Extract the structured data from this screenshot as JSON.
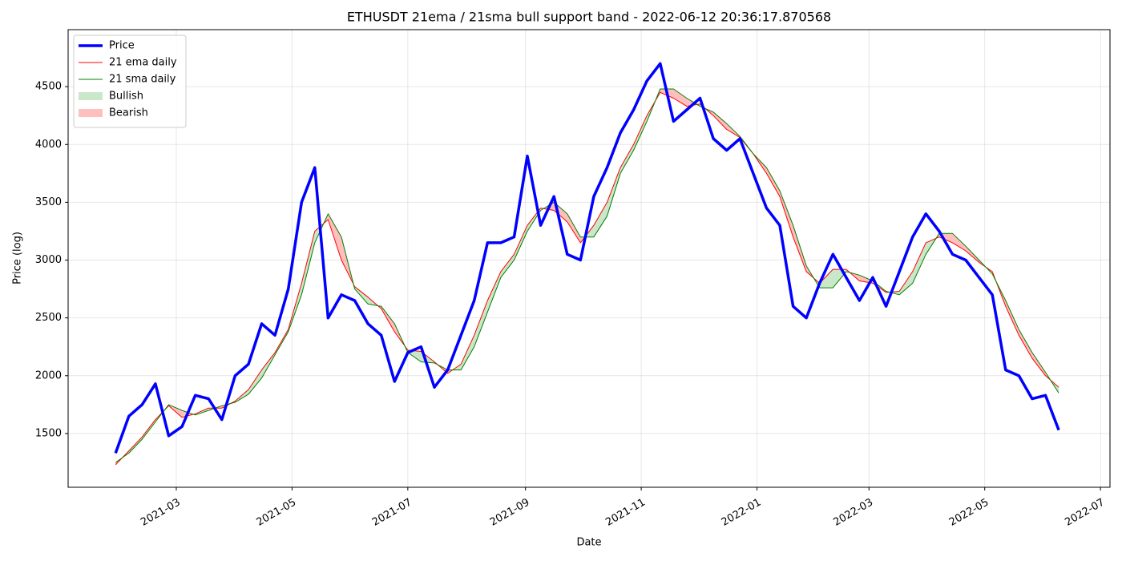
{
  "chart_data": {
    "type": "line",
    "title": "ETHUSDT 21ema / 21sma bull support band - 2022-06-12 20:36:17.870568",
    "x_label": "Date",
    "y_label": "Price (log)",
    "x": [
      "2021-01-28",
      "2021-02-04",
      "2021-02-11",
      "2021-02-18",
      "2021-02-25",
      "2021-03-04",
      "2021-03-11",
      "2021-03-18",
      "2021-03-25",
      "2021-04-01",
      "2021-04-08",
      "2021-04-15",
      "2021-04-22",
      "2021-04-29",
      "2021-05-06",
      "2021-05-13",
      "2021-05-20",
      "2021-05-27",
      "2021-06-03",
      "2021-06-10",
      "2021-06-17",
      "2021-06-24",
      "2021-07-01",
      "2021-07-08",
      "2021-07-15",
      "2021-07-22",
      "2021-07-29",
      "2021-08-05",
      "2021-08-12",
      "2021-08-19",
      "2021-08-26",
      "2021-09-02",
      "2021-09-09",
      "2021-09-16",
      "2021-09-23",
      "2021-09-30",
      "2021-10-07",
      "2021-10-14",
      "2021-10-21",
      "2021-10-28",
      "2021-11-04",
      "2021-11-11",
      "2021-11-18",
      "2021-11-25",
      "2021-12-02",
      "2021-12-09",
      "2021-12-16",
      "2021-12-23",
      "2021-12-30",
      "2022-01-06",
      "2022-01-13",
      "2022-01-20",
      "2022-01-27",
      "2022-02-03",
      "2022-02-10",
      "2022-02-17",
      "2022-02-24",
      "2022-03-03",
      "2022-03-10",
      "2022-03-17",
      "2022-03-24",
      "2022-03-31",
      "2022-04-07",
      "2022-04-14",
      "2022-04-21",
      "2022-04-28",
      "2022-05-05",
      "2022-05-12",
      "2022-05-19",
      "2022-05-26",
      "2022-06-02",
      "2022-06-09"
    ],
    "series": [
      {
        "name": "Price",
        "color": "#0000ff",
        "width": 3.5,
        "values": [
          1330,
          1650,
          1750,
          1930,
          1480,
          1560,
          1830,
          1800,
          1620,
          2000,
          2100,
          2450,
          2350,
          2750,
          3500,
          3800,
          2500,
          2700,
          2650,
          2450,
          2350,
          1950,
          2200,
          2250,
          1900,
          2050,
          2350,
          2650,
          3150,
          3150,
          3200,
          3900,
          3300,
          3550,
          3050,
          3000,
          3550,
          3800,
          4100,
          4300,
          4550,
          4700,
          4200,
          4300,
          4400,
          4050,
          3950,
          4050,
          3750,
          3450,
          3300,
          2600,
          2500,
          2800,
          3050,
          2850,
          2650,
          2850,
          2600,
          2900,
          3200,
          3400,
          3250,
          3050,
          3000,
          2850,
          2700,
          2050,
          2000,
          1800,
          1830,
          1530
        ]
      },
      {
        "name": "21 ema daily",
        "color": "#ff0000",
        "width": 1,
        "values": [
          1230,
          1350,
          1470,
          1620,
          1740,
          1640,
          1670,
          1720,
          1720,
          1780,
          1880,
          2050,
          2200,
          2400,
          2800,
          3250,
          3350,
          3000,
          2770,
          2680,
          2580,
          2380,
          2220,
          2210,
          2120,
          2020,
          2100,
          2350,
          2650,
          2900,
          3050,
          3300,
          3450,
          3430,
          3330,
          3150,
          3300,
          3500,
          3800,
          4000,
          4250,
          4450,
          4400,
          4330,
          4350,
          4250,
          4130,
          4060,
          3920,
          3750,
          3550,
          3200,
          2900,
          2800,
          2920,
          2920,
          2820,
          2800,
          2720,
          2730,
          2900,
          3150,
          3200,
          3150,
          3080,
          2980,
          2900,
          2600,
          2350,
          2150,
          2000,
          1900
        ]
      },
      {
        "name": "21 sma daily",
        "color": "#008000",
        "width": 1,
        "values": [
          1250,
          1330,
          1450,
          1600,
          1750,
          1700,
          1660,
          1700,
          1740,
          1770,
          1840,
          1980,
          2180,
          2380,
          2700,
          3150,
          3400,
          3200,
          2750,
          2620,
          2600,
          2450,
          2200,
          2120,
          2110,
          2050,
          2050,
          2250,
          2550,
          2850,
          3000,
          3250,
          3430,
          3500,
          3400,
          3200,
          3200,
          3380,
          3750,
          3950,
          4200,
          4480,
          4480,
          4400,
          4330,
          4280,
          4180,
          4070,
          3920,
          3800,
          3600,
          3300,
          2950,
          2760,
          2760,
          2900,
          2870,
          2820,
          2730,
          2700,
          2800,
          3050,
          3230,
          3230,
          3120,
          3000,
          2880,
          2650,
          2400,
          2200,
          2030,
          1850
        ]
      }
    ],
    "fills": [
      {
        "name": "Bullish",
        "color": "#2ca02c"
      },
      {
        "name": "Bearish",
        "color": "#ff0000"
      }
    ],
    "xlim": [
      "2021-01-03",
      "2022-07-06"
    ],
    "xticks": [
      {
        "value": "2021-03",
        "label": "2021-03"
      },
      {
        "value": "2021-05",
        "label": "2021-05"
      },
      {
        "value": "2021-07",
        "label": "2021-07"
      },
      {
        "value": "2021-09",
        "label": "2021-09"
      },
      {
        "value": "2021-11",
        "label": "2021-11"
      },
      {
        "value": "2022-01",
        "label": "2022-01"
      },
      {
        "value": "2022-03",
        "label": "2022-03"
      },
      {
        "value": "2022-05",
        "label": "2022-05"
      },
      {
        "value": "2022-07",
        "label": "2022-07"
      }
    ],
    "ylim": [
      1035,
      4993
    ],
    "yticks": [
      1500,
      2000,
      2500,
      3000,
      3500,
      4000,
      4500
    ],
    "grid": true,
    "legend": "upper left"
  }
}
